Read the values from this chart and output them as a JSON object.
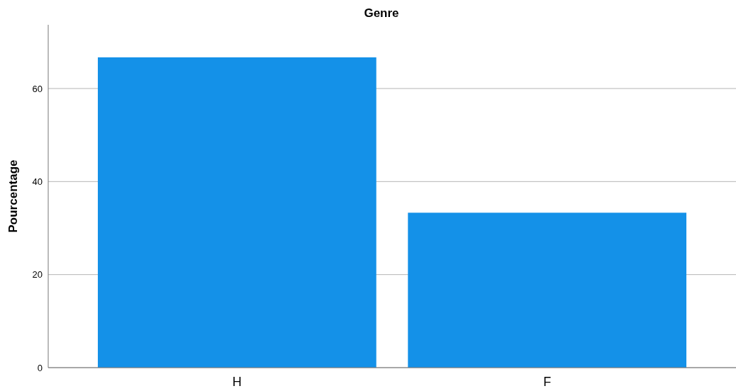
{
  "chart_data": {
    "type": "bar",
    "title": "Genre",
    "ylabel": "Pourcentage",
    "categories": [
      "H",
      "F"
    ],
    "values": [
      66.7,
      33.3
    ],
    "color": "#1491e8",
    "ylim": [
      0,
      73.7
    ],
    "yticks": [
      0,
      20,
      40,
      60
    ],
    "grid": "y"
  }
}
